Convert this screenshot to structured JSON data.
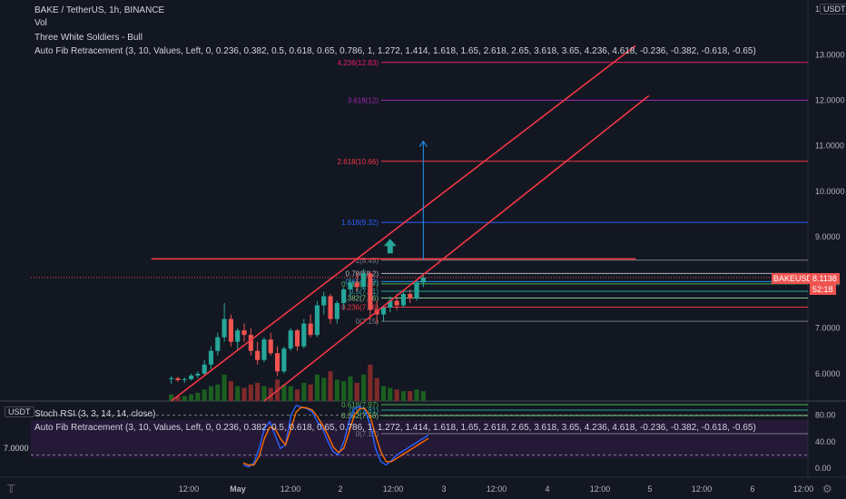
{
  "header": {
    "symbol": "BAKE / TetherUS, 1h, BINANCE",
    "vol": "Vol",
    "pattern": "Three White Soldiers - Bull",
    "fib": "Auto Fib Retracement (3, 10, Values, Left, 0, 0.236, 0.382, 0.5, 0.618, 0.65, 0.786, 1, 1.272, 1.414, 1.618, 1.65, 2.618, 2.65, 3.618, 3.65, 4.236, 4.618, -0.236, -0.382, -0.618, -0.65)"
  },
  "subpane": {
    "stoch": "Stoch RSI (3, 3, 14, 14, close)",
    "fib": "Auto Fib Retracement (3, 10, Values, Left, 0, 0.236, 0.382, 0.5, 0.618, 0.65, 0.786, 1, 1.272, 1.414, 1.618, 1.65, 2.618, 2.65, 3.618, 3.65, 4.236, 4.618, -0.236, -0.382, -0.618, -0.65)"
  },
  "currency": "USDT",
  "price_tag": {
    "symbol": "BAKEUSDT",
    "price": "8.1138",
    "countdown": "52:18"
  },
  "left_tag": "7.0000",
  "logo": "𝕋",
  "gear": "⚙",
  "colors": {
    "background": "#131722",
    "up": "#26a69a",
    "down": "#ef5350",
    "trendline": "#f23645",
    "fib_pink": "#e91e63",
    "fib_purple": "#9c27b0",
    "fib_blue": "#2962ff",
    "stoch_k": "#2962ff",
    "stoch_d": "#ff6d00"
  },
  "chart_data": [
    {
      "type": "candlestick",
      "title": "BAKE / TetherUS, 1h, BINANCE",
      "y_ticks": [
        "14.0000",
        "13.0000",
        "12.0000",
        "11.0000",
        "10.0000",
        "9.0000",
        "8.0000",
        "7.0000",
        "6.0000"
      ],
      "y_tick_values": [
        14,
        13,
        12,
        11,
        10,
        9,
        8,
        7,
        6
      ],
      "ylim": [
        5.4,
        14.2
      ],
      "x_ticks": [
        "12:00",
        "May",
        "12:00",
        "2",
        "12:00",
        "3",
        "12:00",
        "4",
        "12:00",
        "5",
        "12:00",
        "6",
        "12:00"
      ],
      "fib_levels": [
        {
          "label": "4.236(12.83)",
          "value": 12.83,
          "color": "#e91e63"
        },
        {
          "label": "3.618(12)",
          "value": 12.0,
          "color": "#9c27b0"
        },
        {
          "label": "2.618(10.66)",
          "value": 10.66,
          "color": "#f23645"
        },
        {
          "label": "1.618(9.32)",
          "value": 9.32,
          "color": "#2962ff"
        },
        {
          "label": "1(8.49)",
          "value": 8.49,
          "color": "#787b86"
        },
        {
          "label": "0.786(8.2)",
          "value": 8.2,
          "color": "#b2b5be"
        },
        {
          "label": "0.65(8.02)",
          "value": 8.02,
          "color": "#2196f3"
        },
        {
          "label": "0.618(7.97)",
          "value": 7.97,
          "color": "#4caf50"
        },
        {
          "label": "0.5(7.81)",
          "value": 7.81,
          "color": "#26a69a"
        },
        {
          "label": "0.382(7.66)",
          "value": 7.66,
          "color": "#81c784"
        },
        {
          "label": "0.236(7.46)",
          "value": 7.46,
          "color": "#f23645"
        },
        {
          "label": "0(7.15)",
          "value": 7.15,
          "color": "#787b86"
        }
      ],
      "candles": [
        [
          5.88,
          5.95,
          5.78,
          5.9
        ],
        [
          5.9,
          5.93,
          5.82,
          5.86
        ],
        [
          5.86,
          5.92,
          5.8,
          5.88
        ],
        [
          5.88,
          6.0,
          5.85,
          5.96
        ],
        [
          5.96,
          6.05,
          5.9,
          6.0
        ],
        [
          6.0,
          6.3,
          5.95,
          6.2
        ],
        [
          6.2,
          6.6,
          6.1,
          6.5
        ],
        [
          6.5,
          6.9,
          6.4,
          6.8
        ],
        [
          6.8,
          7.55,
          6.7,
          7.2
        ],
        [
          7.2,
          7.3,
          6.6,
          6.7
        ],
        [
          6.7,
          7.0,
          6.5,
          6.95
        ],
        [
          6.95,
          7.1,
          6.7,
          6.85
        ],
        [
          6.85,
          7.0,
          6.4,
          6.5
        ],
        [
          6.5,
          6.7,
          6.2,
          6.3
        ],
        [
          6.3,
          6.8,
          6.25,
          6.75
        ],
        [
          6.75,
          6.9,
          6.4,
          6.45
        ],
        [
          6.45,
          6.6,
          5.95,
          6.05
        ],
        [
          6.05,
          6.6,
          6.0,
          6.55
        ],
        [
          6.55,
          7.0,
          6.5,
          6.95
        ],
        [
          6.95,
          6.98,
          6.5,
          6.6
        ],
        [
          6.6,
          7.2,
          6.55,
          7.1
        ],
        [
          7.1,
          7.3,
          6.8,
          6.85
        ],
        [
          6.85,
          7.6,
          6.8,
          7.5
        ],
        [
          7.5,
          7.8,
          7.3,
          7.7
        ],
        [
          7.7,
          7.75,
          7.1,
          7.2
        ],
        [
          7.2,
          7.6,
          7.1,
          7.55
        ],
        [
          7.55,
          7.9,
          7.4,
          7.85
        ],
        [
          7.85,
          8.1,
          7.7,
          8.0
        ],
        [
          8.0,
          8.2,
          7.8,
          7.9
        ],
        [
          7.9,
          8.3,
          7.85,
          8.2
        ],
        [
          8.2,
          8.25,
          7.2,
          7.4
        ],
        [
          7.4,
          7.6,
          7.1,
          7.3
        ],
        [
          7.3,
          7.5,
          7.15,
          7.45
        ],
        [
          7.45,
          7.7,
          7.35,
          7.6
        ],
        [
          7.6,
          7.75,
          7.4,
          7.5
        ],
        [
          7.5,
          7.8,
          7.45,
          7.75
        ],
        [
          7.75,
          7.85,
          7.55,
          7.65
        ],
        [
          7.65,
          8.05,
          7.6,
          8.0
        ],
        [
          8.0,
          8.2,
          7.9,
          8.11
        ]
      ],
      "volumes": [
        0.4,
        0.3,
        0.3,
        0.4,
        0.5,
        0.7,
        0.9,
        1.0,
        1.6,
        1.2,
        0.9,
        0.8,
        1.0,
        1.1,
        0.9,
        0.8,
        1.3,
        1.0,
        0.9,
        0.7,
        1.1,
        1.0,
        1.6,
        1.4,
        1.8,
        1.3,
        1.2,
        1.5,
        1.1,
        1.6,
        2.2,
        1.4,
        0.9,
        0.8,
        0.7,
        0.6,
        0.6,
        0.7,
        0.6
      ],
      "trendlines": [
        {
          "from": [
            0,
            5.4
          ],
          "to": [
            70,
            13.2
          ],
          "color": "#f23645"
        },
        {
          "from": [
            14,
            5.4
          ],
          "to": [
            72,
            12.1
          ],
          "color": "#f23645"
        },
        {
          "from": [
            -3,
            8.52
          ],
          "to": [
            70,
            8.52
          ],
          "color": "#f23645"
        }
      ],
      "projection_arrow": {
        "x": 38,
        "from": 8.5,
        "to": 11.1,
        "color": "#2196f3"
      },
      "signal_arrow": {
        "x": 33,
        "value": 8.8,
        "color": "#26a69a"
      }
    },
    {
      "type": "line",
      "title": "Stoch RSI (3, 3, 14, 14, close)",
      "y_ticks": [
        "80.00",
        "40.00",
        "0.00"
      ],
      "y_tick_values": [
        80,
        40,
        0
      ],
      "ylim": [
        -8,
        100
      ],
      "fib_levels": [
        {
          "label": "0.618(7.97)",
          "value": 7.97
        },
        {
          "label": "0.5(7.81)",
          "value": 7.81
        },
        {
          "label": "0.382(7.66)",
          "value": 7.66
        },
        {
          "label": "0(7.15)",
          "value": 7.15
        }
      ],
      "series": [
        {
          "values": [
            5,
            2,
            8,
            30,
            60,
            70,
            50,
            30,
            35,
            80,
            95,
            92,
            90,
            85,
            70,
            60,
            40,
            25,
            20,
            40,
            70,
            90,
            93,
            88,
            65,
            30,
            10,
            5,
            12,
            20,
            25,
            30,
            35,
            40,
            45,
            50
          ]
        },
        {
          "values": [
            8,
            5,
            5,
            18,
            45,
            62,
            60,
            45,
            35,
            60,
            85,
            92,
            91,
            88,
            78,
            65,
            50,
            32,
            24,
            30,
            55,
            80,
            90,
            90,
            78,
            50,
            25,
            10,
            10,
            15,
            20,
            25,
            30,
            35,
            40,
            45
          ]
        }
      ]
    }
  ]
}
